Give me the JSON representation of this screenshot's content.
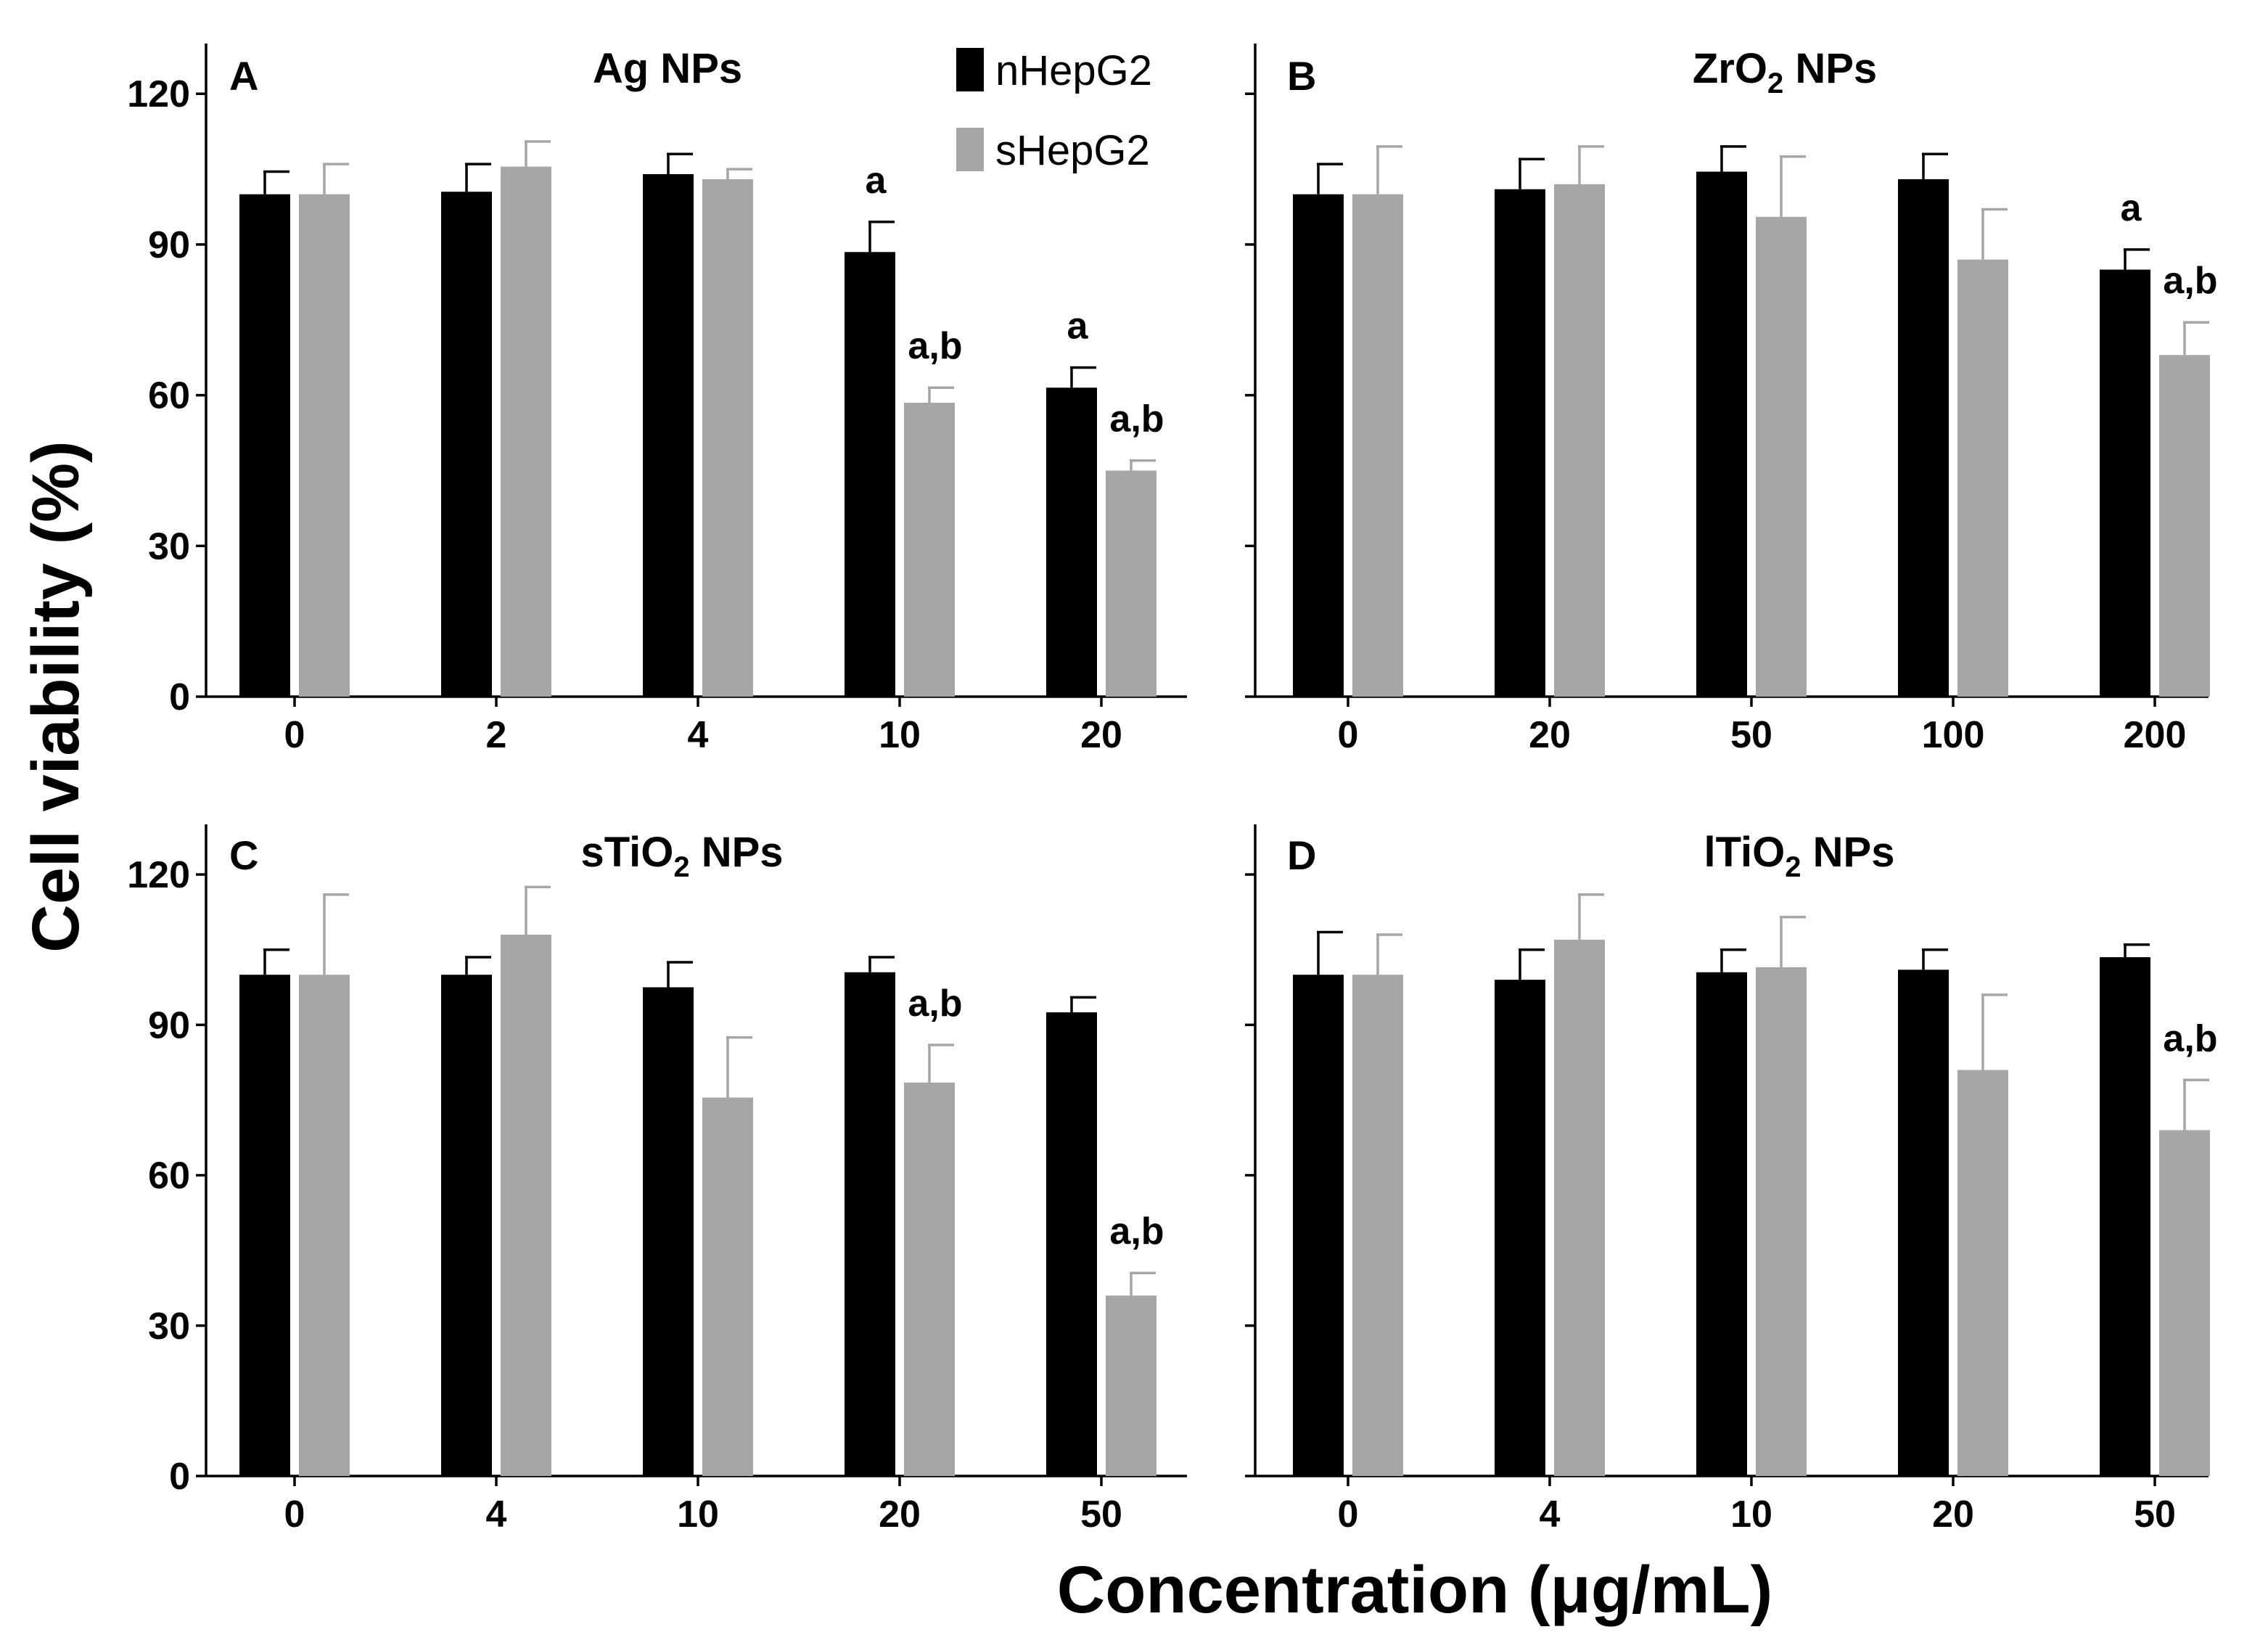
{
  "figure": {
    "ylabel": "Cell viability (%)",
    "xlabel": "Concentration (μg/mL)"
  },
  "legend": [
    {
      "name": "nHepG2",
      "color": "#000000"
    },
    {
      "name": "sHepG2",
      "color": "#a6a6a6"
    }
  ],
  "chart_data": [
    {
      "type": "bar",
      "panel": "A",
      "title": "Ag NPs",
      "title_parts": {
        "main": "Ag",
        "sub": "",
        "tail": " NPs"
      },
      "categories": [
        "0",
        "2",
        "4",
        "10",
        "20"
      ],
      "ylim": [
        0,
        130
      ],
      "yticks": [
        0,
        30,
        60,
        90,
        120
      ],
      "series": [
        {
          "name": "nHepG2",
          "values": [
            100,
            100.5,
            104,
            88.5,
            61.5
          ],
          "errors": [
            4.5,
            5.5,
            4,
            6,
            4
          ]
        },
        {
          "name": "sHepG2",
          "values": [
            100,
            105.5,
            103,
            58.5,
            45
          ],
          "errors": [
            6,
            5,
            2,
            3,
            2
          ]
        }
      ],
      "annotations": [
        {
          "series": 0,
          "index": 3,
          "text": "a"
        },
        {
          "series": 1,
          "index": 3,
          "text": "a,b"
        },
        {
          "series": 0,
          "index": 4,
          "text": "a"
        },
        {
          "series": 1,
          "index": 4,
          "text": "a,b"
        }
      ]
    },
    {
      "type": "bar",
      "panel": "B",
      "title": "ZrO2 NPs",
      "title_parts": {
        "main": "ZrO",
        "sub": "2",
        "tail": " NPs"
      },
      "categories": [
        "0",
        "20",
        "50",
        "100",
        "200"
      ],
      "ylim": [
        0,
        130
      ],
      "yticks": [
        0,
        30,
        60,
        90,
        120
      ],
      "series": [
        {
          "name": "nHepG2",
          "values": [
            100,
            101,
            104.5,
            103,
            85
          ],
          "errors": [
            6,
            6,
            5,
            5,
            4
          ]
        },
        {
          "name": "sHepG2",
          "values": [
            100,
            102,
            95.5,
            87,
            68
          ],
          "errors": [
            9.5,
            7.5,
            12,
            10,
            6.5
          ]
        }
      ],
      "annotations": [
        {
          "series": 0,
          "index": 4,
          "text": "a"
        },
        {
          "series": 1,
          "index": 4,
          "text": "a,b"
        }
      ]
    },
    {
      "type": "bar",
      "panel": "C",
      "title": "sTiO2 NPs",
      "title_parts": {
        "main": "sTiO",
        "sub": "2",
        "tail": " NPs"
      },
      "categories": [
        "0",
        "4",
        "10",
        "20",
        "50"
      ],
      "ylim": [
        0,
        130
      ],
      "yticks": [
        0,
        30,
        60,
        90,
        120
      ],
      "series": [
        {
          "name": "nHepG2",
          "values": [
            100,
            100,
            97.5,
            100.5,
            92.5
          ],
          "errors": [
            5,
            3.5,
            5,
            3,
            3
          ]
        },
        {
          "name": "sHepG2",
          "values": [
            100,
            108,
            75.5,
            78.5,
            36
          ],
          "errors": [
            16,
            9.5,
            12,
            7.5,
            4.5
          ]
        }
      ],
      "annotations": [
        {
          "series": 1,
          "index": 3,
          "text": "a,b"
        },
        {
          "series": 1,
          "index": 4,
          "text": "a,b"
        }
      ]
    },
    {
      "type": "bar",
      "panel": "D",
      "title": "lTiO2 NPs",
      "title_parts": {
        "main": "lTiO",
        "sub": "2",
        "tail": " NPs"
      },
      "categories": [
        "0",
        "4",
        "10",
        "20",
        "50"
      ],
      "ylim": [
        0,
        130
      ],
      "yticks": [
        0,
        30,
        60,
        90,
        120
      ],
      "series": [
        {
          "name": "nHepG2",
          "values": [
            100,
            99,
            100.5,
            101,
            103.5
          ],
          "errors": [
            8.5,
            6,
            4.5,
            4,
            2.5
          ]
        },
        {
          "name": "sHepG2",
          "values": [
            100,
            107,
            101.5,
            81,
            69
          ],
          "errors": [
            8,
            9,
            10,
            15,
            10
          ]
        }
      ],
      "annotations": [
        {
          "series": 1,
          "index": 4,
          "text": "a,b"
        }
      ]
    }
  ]
}
